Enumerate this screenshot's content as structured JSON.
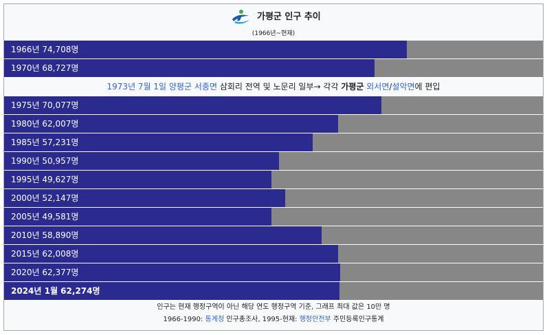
{
  "header": {
    "title": "가평군 인구 추이",
    "subtitle": "(1966년~현재)",
    "logo_icon": "gapyeong-county-logo-icon"
  },
  "chart_data": {
    "type": "bar",
    "orientation": "horizontal",
    "xlim": [
      0,
      100000
    ],
    "colors": {
      "bar": "#2b2b8f",
      "track": "#878787"
    },
    "groups": [
      {
        "rows": [
          {
            "label": "1966년 74,708명",
            "value": 74708
          },
          {
            "label": "1970년 68,727명",
            "value": 68727
          }
        ]
      },
      {
        "rows": [
          {
            "label": "1975년 70,077명",
            "value": 70077
          },
          {
            "label": "1980년 62,007명",
            "value": 62007
          },
          {
            "label": "1985년 57,231명",
            "value": 57231
          },
          {
            "label": "1990년 50,957명",
            "value": 50957
          },
          {
            "label": "1995년 49,627명",
            "value": 49627
          },
          {
            "label": "2000년 52,147명",
            "value": 52147
          },
          {
            "label": "2005년 49,581명",
            "value": 49581
          },
          {
            "label": "2010년 58,890명",
            "value": 58890
          },
          {
            "label": "2015년 62,008명",
            "value": 62008
          },
          {
            "label": "2020년 62,377명",
            "value": 62377
          },
          {
            "label": "2024년 1월 62,274명",
            "value": 62274,
            "bold": true
          }
        ]
      }
    ]
  },
  "note": {
    "date_link": "1973년 7월 1일",
    "county_link": "양평군",
    "town_link": "서종면",
    "text_mid": " 삼회리 전역 및 노문리 일부→ 각각 ",
    "county_bold": "가평군",
    "link_a": "외서면",
    "slash": "/",
    "link_b": "설악면",
    "text_end": "에 편입"
  },
  "footer": {
    "line1": "인구는 현재 행정구역이 아닌 해당 연도 행정구역 기준, 그래프 최대 값은 10만 명",
    "line2_prefix": "1966-1990: ",
    "line2_link1": "통계청",
    "line2_mid": " 인구총조사, 1995-현재: ",
    "line2_link2": "행정안전부",
    "line2_suffix": " 주민등록인구통계"
  }
}
